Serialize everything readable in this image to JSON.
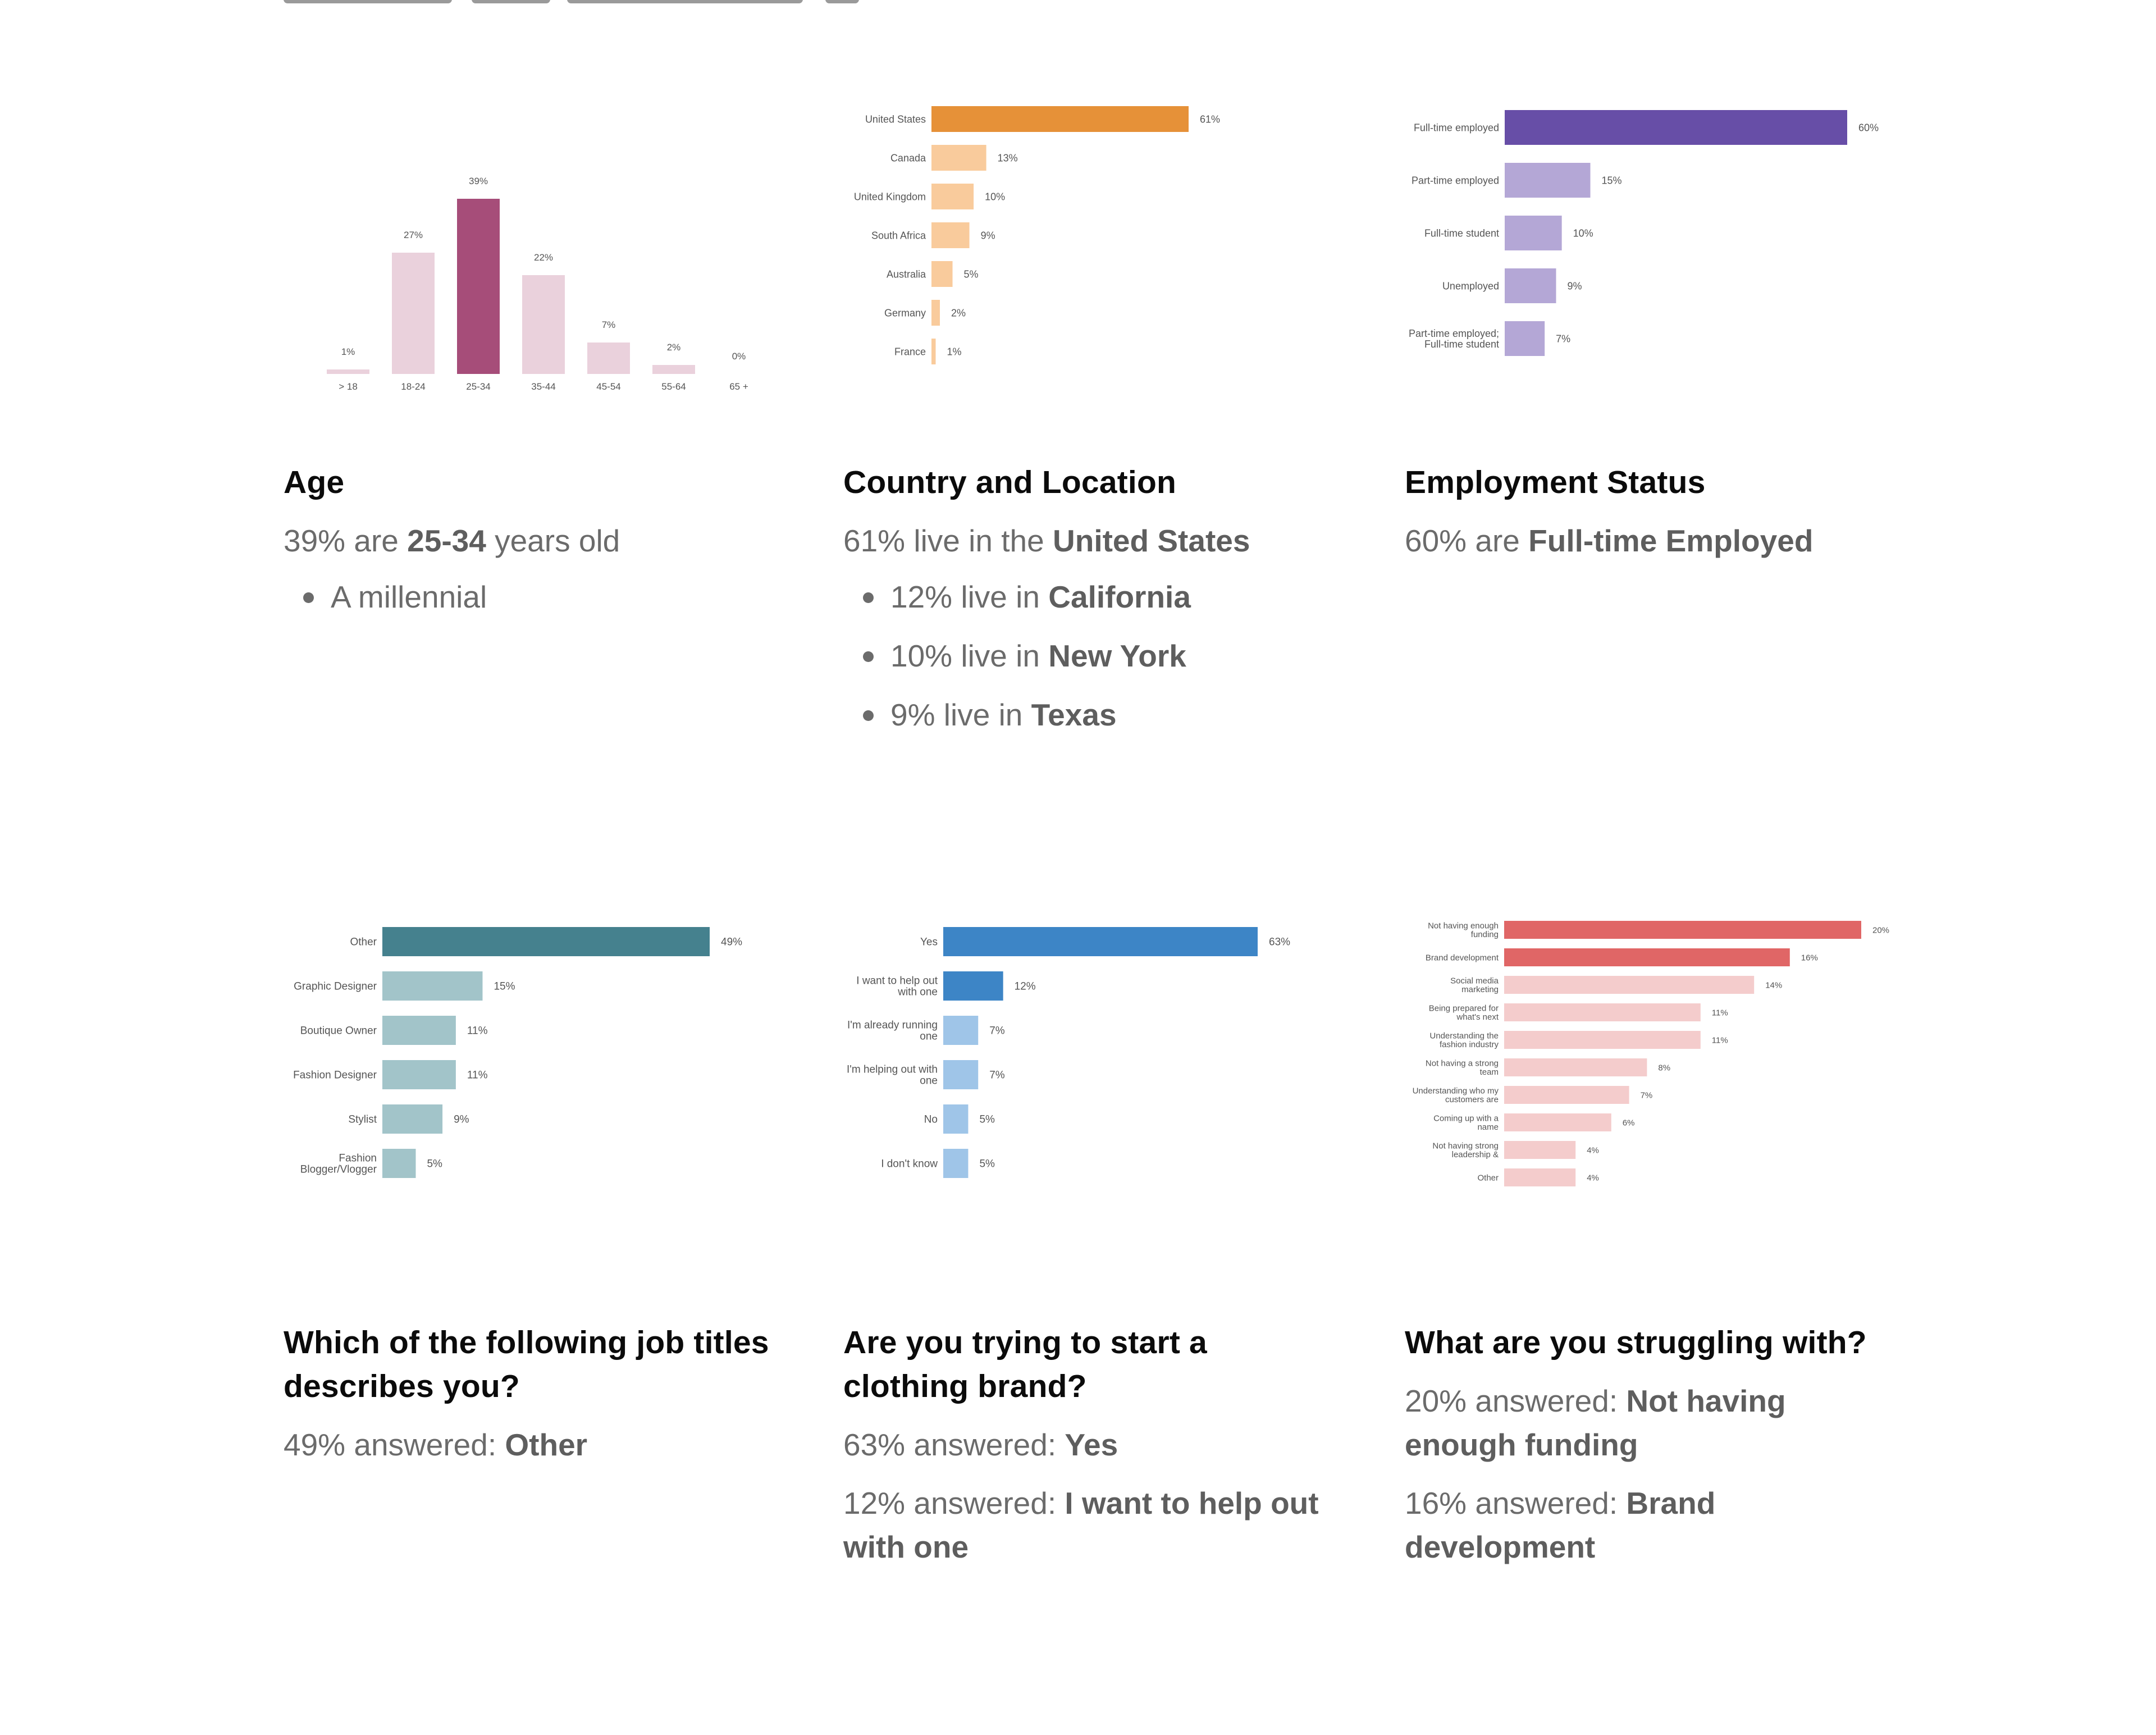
{
  "colors": {
    "age_highlight": "#a64d79",
    "age_base": "#ead1dc",
    "country_highlight": "#e69138",
    "country_base": "#f9cb9c",
    "employment_highlight": "#674ea7",
    "employment_base": "#b4a7d6",
    "job_highlight": "#45818e",
    "job_base": "#a2c4c9",
    "brand_highlight": "#3d85c6",
    "brand_base": "#9fc5e8",
    "struggle_highlight": "#e06666",
    "struggle_base": "#f4cccc"
  },
  "chart_data": [
    {
      "id": "age",
      "type": "bar",
      "orientation": "vertical",
      "categories": [
        "> 18",
        "18-24",
        "25-34",
        "35-44",
        "45-54",
        "55-64",
        "65 +"
      ],
      "values": [
        1,
        27,
        39,
        22,
        7,
        2,
        0
      ],
      "labels": [
        "1%",
        "27%",
        "39%",
        "22%",
        "7%",
        "2%",
        "0%"
      ],
      "highlight": [
        2
      ],
      "ylim": [
        0,
        40
      ]
    },
    {
      "id": "country",
      "type": "bar",
      "orientation": "horizontal",
      "categories": [
        "United States",
        "Canada",
        "United Kingdom",
        "South Africa",
        "Australia",
        "Germany",
        "France"
      ],
      "values": [
        61,
        13,
        10,
        9,
        5,
        2,
        1
      ],
      "labels": [
        "61%",
        "13%",
        "10%",
        "9%",
        "5%",
        "2%",
        "1%"
      ],
      "highlight": [
        0
      ],
      "xlim": [
        0,
        61
      ]
    },
    {
      "id": "employment",
      "type": "bar",
      "orientation": "horizontal",
      "categories": [
        "Full-time employed",
        "Part-time employed",
        "Full-time student",
        "Unemployed",
        "Part-time employed;\nFull-time student"
      ],
      "values": [
        60,
        15,
        10,
        9,
        7
      ],
      "labels": [
        "60%",
        "15%",
        "10%",
        "9%",
        "7%"
      ],
      "highlight": [
        0
      ],
      "xlim": [
        0,
        60
      ]
    },
    {
      "id": "job",
      "type": "bar",
      "orientation": "horizontal",
      "categories": [
        "Other",
        "Graphic Designer",
        "Boutique Owner",
        "Fashion Designer",
        "Stylist",
        "Fashion\nBlogger/Vlogger"
      ],
      "values": [
        49,
        15,
        11,
        11,
        9,
        5
      ],
      "labels": [
        "49%",
        "15%",
        "11%",
        "11%",
        "9%",
        "5%"
      ],
      "highlight": [
        0
      ],
      "xlim": [
        0,
        49
      ]
    },
    {
      "id": "brand",
      "type": "bar",
      "orientation": "horizontal",
      "categories": [
        "Yes",
        "I want to help out\nwith one",
        "I'm already running\none",
        "I'm helping out with\none",
        "No",
        "I don't know"
      ],
      "values": [
        63,
        12,
        7,
        7,
        5,
        5
      ],
      "labels": [
        "63%",
        "12%",
        "7%",
        "7%",
        "5%",
        "5%"
      ],
      "highlight": [
        0,
        1
      ],
      "xlim": [
        0,
        63
      ]
    },
    {
      "id": "struggle",
      "type": "bar",
      "orientation": "horizontal",
      "categories": [
        "Not having enough\nfunding",
        "Brand development",
        "Social media\nmarketing",
        "Being prepared for\nwhat's next",
        "Understanding the\nfashion industry",
        "Not having a strong\nteam",
        "Understanding who my\ncustomers are",
        "Coming up with a\nname",
        "Not having strong\nleadership &",
        "Other"
      ],
      "values": [
        20,
        16,
        14,
        11,
        11,
        8,
        7,
        6,
        4,
        4
      ],
      "labels": [
        "20%",
        "16%",
        "14%",
        "11%",
        "11%",
        "8%",
        "7%",
        "6%",
        "4%",
        "4%"
      ],
      "highlight": [
        0,
        1
      ],
      "xlim": [
        0,
        20
      ]
    }
  ],
  "cards": {
    "age": {
      "title": "Age",
      "lead_pre": "39% are ",
      "lead_bold": "25-34",
      "lead_post": " years old",
      "bullets": [
        {
          "text": "A millennial"
        }
      ]
    },
    "country": {
      "title": "Country and Location",
      "lead_pre": "61% live in the ",
      "lead_bold": "United States",
      "bullets": [
        {
          "pre": "12% live in ",
          "bold": "California"
        },
        {
          "pre": "10% live in ",
          "bold": "New York"
        },
        {
          "pre": "9% live in ",
          "bold": "Texas"
        }
      ]
    },
    "employment": {
      "title": "Employment Status",
      "lead_pre": "60% are ",
      "lead_bold": "Full-time Employed"
    },
    "job": {
      "title": "Which of the following job titles describes you?",
      "lines": [
        {
          "pre": "49% answered: ",
          "bold": "Other"
        }
      ]
    },
    "brand": {
      "title": "Are you trying to start a clothing brand?",
      "lines": [
        {
          "pre": "63% answered: ",
          "bold": "Yes"
        },
        {
          "pre": "12% answered: ",
          "bold": "I want to help out with one"
        }
      ]
    },
    "struggle": {
      "title": "What are you struggling with?",
      "lines": [
        {
          "pre": "20% answered: ",
          "bold": "Not having enough funding"
        },
        {
          "pre": "16% answered: ",
          "bold": "Brand development"
        }
      ]
    }
  }
}
